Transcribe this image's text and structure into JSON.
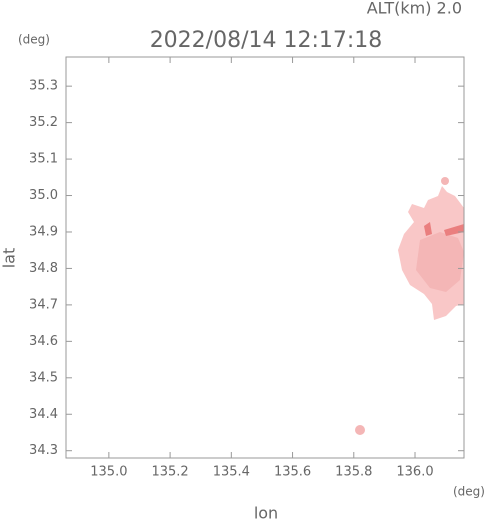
{
  "chart_data": {
    "type": "map",
    "title": "2022/08/14 12:17:18",
    "altitude_label": "ALT(km)  2.0",
    "y_unit": "(deg)",
    "x_unit": "(deg)",
    "x_label": "lon",
    "y_label": "lat",
    "xlim": [
      134.86,
      136.16
    ],
    "ylim": [
      34.28,
      35.38
    ],
    "xticks": [
      {
        "value": 135,
        "label": "135.0"
      },
      135.2,
      135.4,
      135.6,
      135.8,
      {
        "value": 136,
        "label": "136.0"
      }
    ],
    "yticks": [
      35.3,
      35.2,
      35.1,
      {
        "value": 35,
        "label": "35.0"
      },
      34.9,
      34.8,
      34.7,
      34.6,
      34.5,
      34.4,
      34.3
    ]
  }
}
